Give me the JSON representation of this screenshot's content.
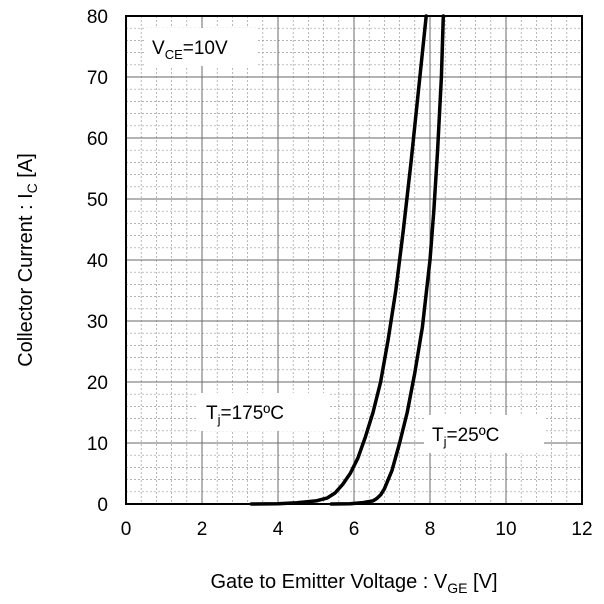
{
  "chart_data": {
    "type": "line",
    "xlabel": {
      "main": "Gate to Emitter Voltage : V",
      "sub": "GE",
      "unit": " [V]"
    },
    "ylabel": {
      "main": "Collector Current : I",
      "sub": "C",
      "unit": " [A]"
    },
    "xlim": [
      0,
      12
    ],
    "ylim": [
      0,
      80
    ],
    "xticks": [
      0,
      2,
      4,
      6,
      8,
      10,
      12
    ],
    "yticks": [
      0,
      10,
      20,
      30,
      40,
      50,
      60,
      70,
      80
    ],
    "grid": {
      "major": true,
      "minor": true,
      "x_minor_step": 0.4,
      "y_minor_step": 2
    },
    "series": [
      {
        "name": "Tj=175°C",
        "color": "#000000",
        "x": [
          3.3,
          4.0,
          4.5,
          5.0,
          5.3,
          5.5,
          5.7,
          5.9,
          6.1,
          6.3,
          6.5,
          6.7,
          6.9,
          7.1,
          7.3,
          7.5,
          7.7,
          7.9
        ],
        "y": [
          0,
          0.05,
          0.2,
          0.5,
          1,
          1.8,
          3.2,
          5,
          7.5,
          11,
          15,
          20,
          27,
          35,
          45,
          56,
          68,
          80
        ]
      },
      {
        "name": "Tj=25°C",
        "color": "#000000",
        "x": [
          5.4,
          5.9,
          6.2,
          6.5,
          6.6,
          6.7,
          6.8,
          6.9,
          7.0,
          7.2,
          7.4,
          7.6,
          7.8,
          8.0,
          8.1,
          8.2,
          8.3,
          8.35
        ],
        "y": [
          0,
          0.05,
          0.2,
          0.5,
          0.9,
          1.5,
          2.5,
          4,
          5.5,
          10,
          15,
          21.5,
          29,
          40,
          48,
          58,
          70,
          80
        ]
      }
    ],
    "annotations": [
      {
        "main": "V",
        "sub": "CE",
        "tail": "=10V"
      },
      {
        "main": "T",
        "sub": "j",
        "tail": "=175ºC"
      },
      {
        "main": "T",
        "sub": "j",
        "tail": "=25ºC"
      }
    ]
  }
}
